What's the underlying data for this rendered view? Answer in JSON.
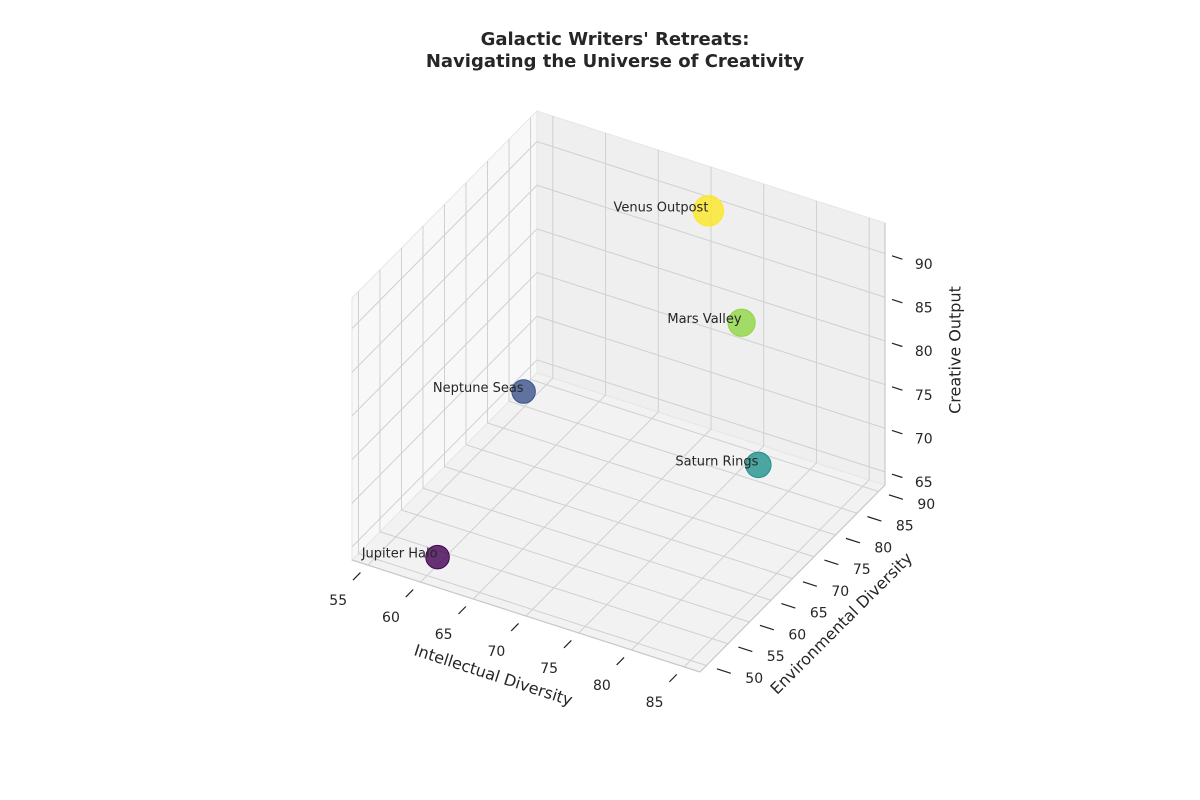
{
  "chart_data": {
    "type": "scatter3d",
    "title": [
      "Galactic Writers' Retreats:",
      "Navigating the Universe of Creativity"
    ],
    "xlabel": "Intellectual Diversity",
    "ylabel": "Environmental Diversity",
    "zlabel": "Creative Output",
    "labels": [
      "Jupiter Halo",
      "Neptune Seas",
      "Saturn Rings",
      "Mars Valley",
      "Venus Outpost"
    ],
    "x": [
      61,
      61,
      80,
      78,
      72
    ],
    "y": [
      50,
      70,
      78,
      79,
      86
    ],
    "z": [
      66,
      75,
      70,
      85,
      92
    ],
    "sizes": [
      300,
      300,
      350,
      400,
      500
    ],
    "colors": [
      "#440154",
      "#3b528b",
      "#21918c",
      "#8fd744",
      "#fde725"
    ],
    "xlim": [
      53.5,
      86.5
    ],
    "xticks": [
      55,
      60,
      65,
      70,
      75,
      80,
      85
    ],
    "ylim": [
      48.5,
      91.5
    ],
    "yticks": [
      50,
      55,
      60,
      65,
      70,
      75,
      80,
      85,
      90
    ],
    "zlim": [
      63.5,
      93.5
    ],
    "zticks": [
      65,
      70,
      75,
      80,
      85,
      90
    ],
    "grid": true
  }
}
